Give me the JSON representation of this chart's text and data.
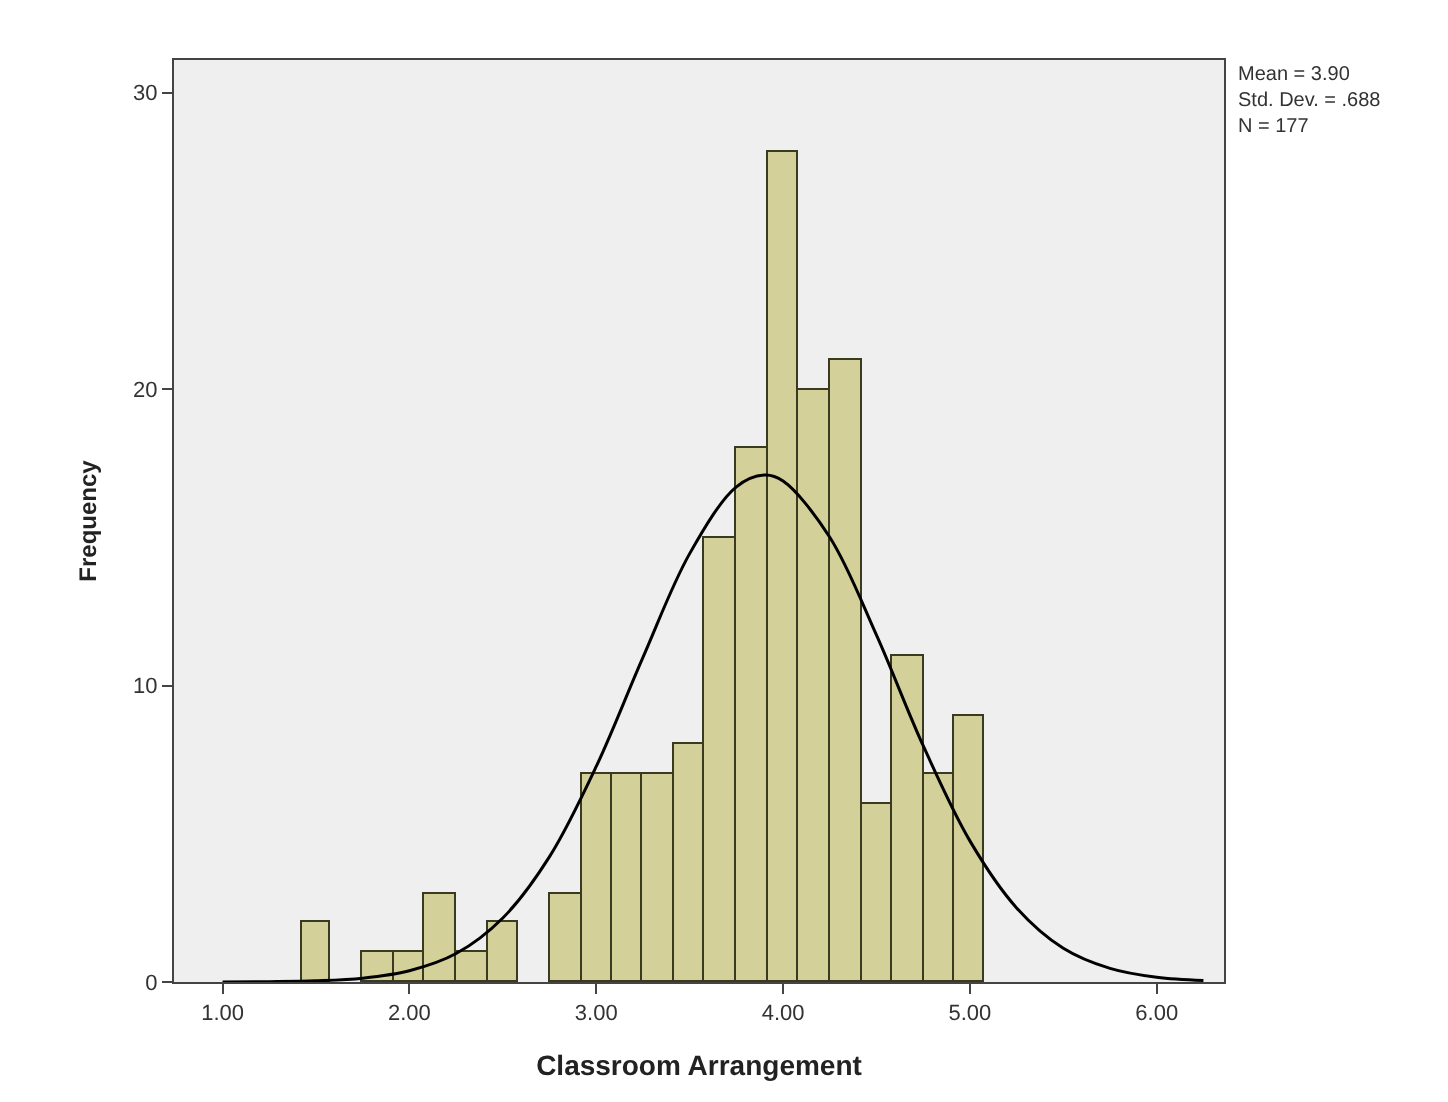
{
  "chart_data": {
    "type": "histogram",
    "xlabel": "Classroom Arrangement",
    "ylabel": "Frequency",
    "bins": [
      1.42,
      1.58,
      1.75,
      1.92,
      2.08,
      2.25,
      2.42,
      2.58,
      2.75,
      2.92,
      3.08,
      3.25,
      3.42,
      3.58,
      3.75,
      3.92,
      4.08,
      4.25,
      4.42,
      4.58,
      4.75,
      4.92,
      5.08
    ],
    "series": [
      {
        "color": "#d4d09a",
        "values": [
          2,
          0,
          1,
          1,
          3,
          1,
          2,
          0,
          3,
          7,
          7,
          7,
          8,
          15,
          18,
          28,
          20,
          21,
          6,
          11,
          7,
          9
        ]
      },
      {
        "type": "line",
        "color": "#000000",
        "x": [
          1.0,
          1.25,
          1.5,
          1.75,
          2.0,
          2.25,
          2.5,
          2.75,
          3.0,
          3.25,
          3.5,
          3.75,
          3.9,
          4.0,
          4.25,
          4.5,
          4.75,
          5.0,
          5.25,
          5.5,
          5.75,
          6.0,
          6.25
        ],
        "values": [
          0.0,
          0.01,
          0.04,
          0.13,
          0.38,
          0.96,
          2.16,
          4.23,
          7.27,
          10.95,
          14.45,
          16.7,
          17.1,
          16.9,
          15.0,
          11.7,
          7.97,
          4.76,
          2.5,
          1.14,
          0.46,
          0.16,
          0.05
        ]
      }
    ],
    "xlim": [
      0.74,
      6.36
    ],
    "ylim": [
      0,
      31.1
    ],
    "xticks": [
      {
        "value": 1,
        "label": "1.00"
      },
      {
        "value": 2,
        "label": "2.00"
      },
      {
        "value": 3,
        "label": "3.00"
      },
      {
        "value": 4,
        "label": "4.00"
      },
      {
        "value": 5,
        "label": "5.00"
      },
      {
        "value": 6,
        "label": "6.00"
      }
    ],
    "yticks": [
      0,
      10,
      20,
      30
    ],
    "annotations": [
      "Mean = 3.90\nStd. Dev. = .688\nN = 177"
    ],
    "grid": false,
    "legend": false,
    "marker": "none",
    "line_style": "solid"
  }
}
